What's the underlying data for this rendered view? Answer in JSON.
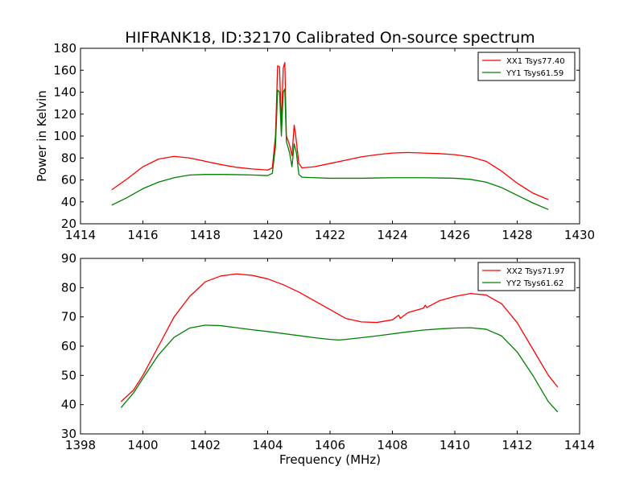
{
  "figure": {
    "title": "HIFRANK18, ID:32170 Calibrated On-source spectrum"
  },
  "chart_data": [
    {
      "type": "line",
      "title": "HIFRANK18, ID:32170 Calibrated On-source spectrum",
      "xlabel": "",
      "ylabel": "Power in Kelvin",
      "xlim": [
        1414,
        1430
      ],
      "ylim": [
        20,
        180
      ],
      "x_ticks": [
        1414,
        1416,
        1418,
        1420,
        1422,
        1424,
        1426,
        1428,
        1430
      ],
      "y_ticks": [
        20,
        40,
        60,
        80,
        100,
        120,
        140,
        160,
        180
      ],
      "grid": false,
      "legend_position": "top-right",
      "series": [
        {
          "name": "XX1 Tsys77.40",
          "color": "#ff0000",
          "points": [
            [
              1415.0,
              51
            ],
            [
              1415.5,
              61
            ],
            [
              1416.0,
              72
            ],
            [
              1416.5,
              79
            ],
            [
              1417.0,
              81.5
            ],
            [
              1417.5,
              80
            ],
            [
              1418.0,
              77
            ],
            [
              1418.5,
              74
            ],
            [
              1419.0,
              71.5
            ],
            [
              1419.5,
              70
            ],
            [
              1420.0,
              69
            ],
            [
              1420.15,
              71
            ],
            [
              1420.25,
              100
            ],
            [
              1420.32,
              164
            ],
            [
              1420.38,
              163
            ],
            [
              1420.44,
              110
            ],
            [
              1420.5,
              162
            ],
            [
              1420.55,
              167
            ],
            [
              1420.6,
              100
            ],
            [
              1420.7,
              92
            ],
            [
              1420.78,
              82
            ],
            [
              1420.85,
              110
            ],
            [
              1420.9,
              100
            ],
            [
              1421.0,
              75
            ],
            [
              1421.1,
              71
            ],
            [
              1421.5,
              72
            ],
            [
              1422.0,
              75
            ],
            [
              1422.5,
              78
            ],
            [
              1423.0,
              81
            ],
            [
              1423.5,
              83
            ],
            [
              1424.0,
              84.5
            ],
            [
              1424.5,
              85
            ],
            [
              1425.0,
              84.5
            ],
            [
              1425.5,
              84
            ],
            [
              1426.0,
              83
            ],
            [
              1426.5,
              81
            ],
            [
              1427.0,
              77
            ],
            [
              1427.5,
              68
            ],
            [
              1428.0,
              57
            ],
            [
              1428.5,
              48
            ],
            [
              1429.0,
              42
            ]
          ]
        },
        {
          "name": "YY1 Tsys61.59",
          "color": "#008000",
          "points": [
            [
              1415.0,
              37
            ],
            [
              1415.5,
              44
            ],
            [
              1416.0,
              52
            ],
            [
              1416.5,
              58
            ],
            [
              1417.0,
              62
            ],
            [
              1417.5,
              64.5
            ],
            [
              1418.0,
              65
            ],
            [
              1418.5,
              65
            ],
            [
              1419.0,
              64.8
            ],
            [
              1419.5,
              64.5
            ],
            [
              1420.0,
              64
            ],
            [
              1420.15,
              66
            ],
            [
              1420.25,
              90
            ],
            [
              1420.32,
              142
            ],
            [
              1420.38,
              140
            ],
            [
              1420.44,
              100
            ],
            [
              1420.5,
              140
            ],
            [
              1420.55,
              143
            ],
            [
              1420.6,
              95
            ],
            [
              1420.7,
              85
            ],
            [
              1420.78,
              72
            ],
            [
              1420.85,
              93
            ],
            [
              1420.92,
              85
            ],
            [
              1421.0,
              65
            ],
            [
              1421.1,
              62.5
            ],
            [
              1421.5,
              62
            ],
            [
              1422.0,
              61.5
            ],
            [
              1422.5,
              61.5
            ],
            [
              1423.0,
              61.5
            ],
            [
              1423.5,
              61.8
            ],
            [
              1424.0,
              62
            ],
            [
              1424.5,
              62
            ],
            [
              1425.0,
              62
            ],
            [
              1425.5,
              61.8
            ],
            [
              1426.0,
              61.5
            ],
            [
              1426.5,
              60.5
            ],
            [
              1427.0,
              58
            ],
            [
              1427.5,
              53
            ],
            [
              1428.0,
              46
            ],
            [
              1428.5,
              39
            ],
            [
              1429.0,
              33
            ]
          ]
        }
      ]
    },
    {
      "type": "line",
      "title": "",
      "xlabel": "Frequency (MHz)",
      "ylabel": "",
      "xlim": [
        1398,
        1414
      ],
      "ylim": [
        30,
        90
      ],
      "x_ticks": [
        1398,
        1400,
        1402,
        1404,
        1406,
        1408,
        1410,
        1412,
        1414
      ],
      "y_ticks": [
        30,
        40,
        50,
        60,
        70,
        80,
        90
      ],
      "grid": false,
      "legend_position": "top-right",
      "series": [
        {
          "name": "XX2 Tsys71.97",
          "color": "#ff0000",
          "points": [
            [
              1399.3,
              41
            ],
            [
              1399.7,
              45
            ],
            [
              1400.0,
              50
            ],
            [
              1400.5,
              60
            ],
            [
              1401.0,
              70
            ],
            [
              1401.5,
              77
            ],
            [
              1402.0,
              82
            ],
            [
              1402.5,
              84
            ],
            [
              1403.0,
              84.7
            ],
            [
              1403.5,
              84.2
            ],
            [
              1404.0,
              83
            ],
            [
              1404.5,
              81
            ],
            [
              1405.0,
              78.5
            ],
            [
              1405.5,
              75.5
            ],
            [
              1406.0,
              72.5
            ],
            [
              1406.5,
              69.5
            ],
            [
              1407.0,
              68.3
            ],
            [
              1407.5,
              68.1
            ],
            [
              1408.0,
              69
            ],
            [
              1408.2,
              70.6
            ],
            [
              1408.25,
              69.5
            ],
            [
              1408.5,
              71.5
            ],
            [
              1409.0,
              73
            ],
            [
              1409.05,
              74
            ],
            [
              1409.1,
              73.2
            ],
            [
              1409.5,
              75.5
            ],
            [
              1410.0,
              77
            ],
            [
              1410.5,
              78
            ],
            [
              1411.0,
              77.5
            ],
            [
              1411.5,
              74.5
            ],
            [
              1412.0,
              68
            ],
            [
              1412.5,
              59
            ],
            [
              1413.0,
              50
            ],
            [
              1413.3,
              46
            ]
          ]
        },
        {
          "name": "YY2 Tsys61.62",
          "color": "#008000",
          "points": [
            [
              1399.3,
              39
            ],
            [
              1399.7,
              44
            ],
            [
              1400.0,
              49
            ],
            [
              1400.5,
              57
            ],
            [
              1401.0,
              63
            ],
            [
              1401.5,
              66.2
            ],
            [
              1402.0,
              67.2
            ],
            [
              1402.5,
              67
            ],
            [
              1403.0,
              66.3
            ],
            [
              1403.5,
              65.6
            ],
            [
              1404.0,
              65
            ],
            [
              1404.5,
              64.3
            ],
            [
              1405.0,
              63.6
            ],
            [
              1405.5,
              62.9
            ],
            [
              1406.0,
              62.3
            ],
            [
              1406.3,
              62.1
            ],
            [
              1406.5,
              62.3
            ],
            [
              1407.0,
              62.9
            ],
            [
              1407.5,
              63.5
            ],
            [
              1408.0,
              64.2
            ],
            [
              1408.5,
              64.9
            ],
            [
              1409.0,
              65.5
            ],
            [
              1409.5,
              65.9
            ],
            [
              1410.0,
              66.2
            ],
            [
              1410.5,
              66.3
            ],
            [
              1411.0,
              65.8
            ],
            [
              1411.5,
              63.5
            ],
            [
              1412.0,
              58
            ],
            [
              1412.5,
              50
            ],
            [
              1413.0,
              41
            ],
            [
              1413.3,
              37.5
            ]
          ]
        }
      ]
    }
  ]
}
